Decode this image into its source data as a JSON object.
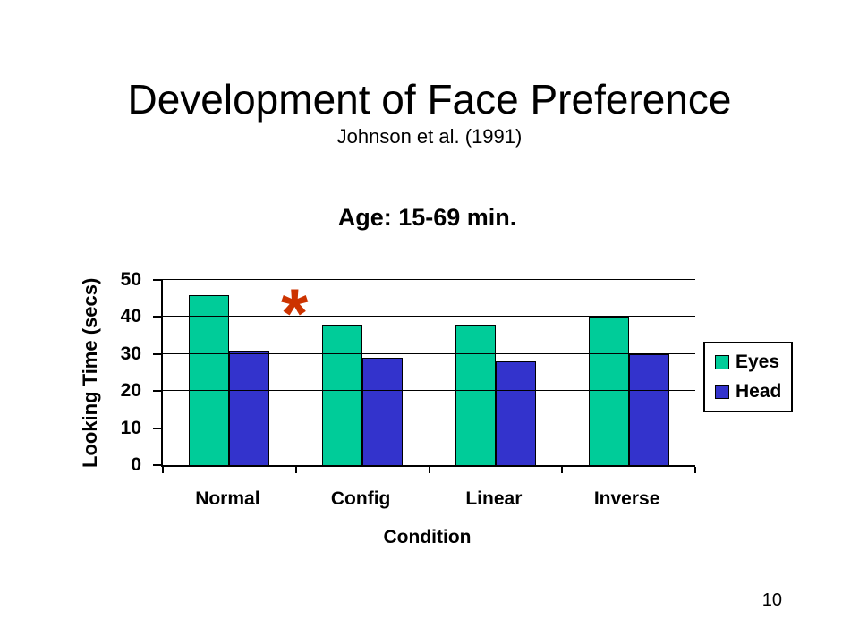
{
  "slide": {
    "title": "Development of Face Preference",
    "subtitle": "Johnson et al. (1991)",
    "page_number": "10"
  },
  "chart_data": {
    "type": "bar",
    "title": "Age: 15-69 min.",
    "xlabel": "Condition",
    "ylabel": "Looking Time (secs)",
    "categories": [
      "Normal",
      "Config",
      "Linear",
      "Inverse"
    ],
    "series": [
      {
        "name": "Eyes",
        "color": "#00CC99",
        "values": [
          46,
          38,
          38,
          40
        ]
      },
      {
        "name": "Head",
        "color": "#3333CC",
        "values": [
          31,
          29,
          28,
          30
        ]
      }
    ],
    "ylim": [
      0,
      50
    ],
    "yticks": [
      0,
      10,
      20,
      30,
      40,
      50
    ],
    "grid": true,
    "legend_position": "right",
    "annotation": {
      "symbol": "*",
      "color": "#CC3300"
    }
  }
}
